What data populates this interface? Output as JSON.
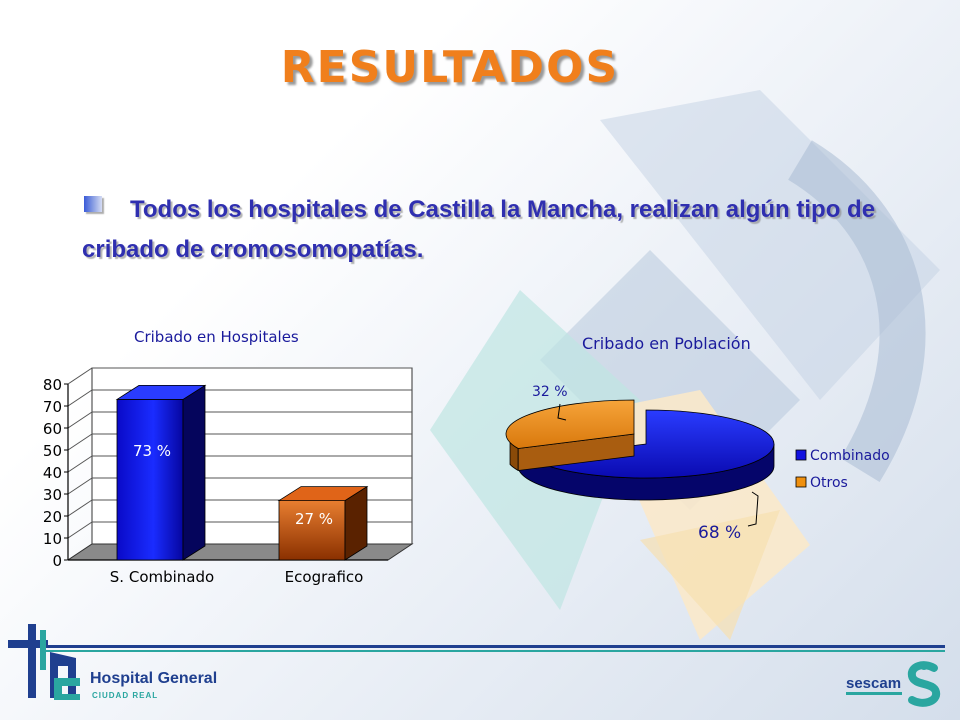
{
  "slide": {
    "title": "RESULTADOS",
    "bullet_text": "Todos los hospitales de Castilla la Mancha, realizan algún tipo de cribado de cromosomopatías."
  },
  "chart_data": [
    {
      "type": "bar",
      "title": "Cribado en Hospitales",
      "categories": [
        "S. Combinado",
        "Ecografico"
      ],
      "values": [
        73,
        27
      ],
      "data_labels": [
        "73 %",
        "27 %"
      ],
      "colors": [
        "#1010e0",
        "#d86010"
      ],
      "ylim": [
        0,
        80
      ],
      "yticks": [
        "0",
        "10",
        "20",
        "30",
        "40",
        "50",
        "60",
        "70",
        "80"
      ],
      "grid": true,
      "xlabel": "",
      "ylabel": ""
    },
    {
      "type": "pie",
      "title": "Cribado en Población",
      "labels": [
        "Combinado",
        "Otros"
      ],
      "values": [
        68,
        32
      ],
      "data_labels": [
        "68 %",
        "32 %"
      ],
      "colors": [
        "#1010e0",
        "#f0900e"
      ],
      "legend_position": "right"
    }
  ],
  "footer": {
    "hospital_name": "Hospital General",
    "hospital_city": "CIUDAD REAL",
    "org_name": "sescam",
    "colors": {
      "navy": "#1f3f8f",
      "teal": "#2aa6a0"
    }
  }
}
